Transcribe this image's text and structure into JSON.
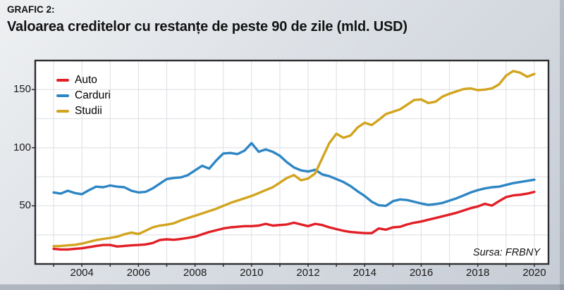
{
  "header": {
    "kicker": "GRAFIC 2:",
    "title": "Valoarea creditelor cu restanțe de peste 90 de zile (mld. USD)"
  },
  "source_note": "Sursa: FRBNY",
  "colors": {
    "auto_red": "#e11f26",
    "carduri_blue": "#2e86c4",
    "studii_gold": "#d2a41e",
    "grid": "#dbdee2",
    "plot_border": "#2e2e30",
    "plot_background": "#ffffff",
    "text": "#121212"
  },
  "chart_data": {
    "type": "line",
    "title": "Valoarea creditelor cu restanțe de peste 90 de zile (mld. USD)",
    "xlabel": "",
    "ylabel": "",
    "x_start": 2003.0,
    "x_step": 0.25,
    "x_unit": "year (quarterly data)",
    "xlim": [
      2002.35,
      2020.5
    ],
    "ylim": [
      0,
      175
    ],
    "grid": {
      "x_every_years": 1,
      "y_every_units": 25
    },
    "x_tick_labels": [
      "2004",
      "2006",
      "2008",
      "2010",
      "2012",
      "2014",
      "2016",
      "2018",
      "2020"
    ],
    "x_tick_years": [
      2004,
      2006,
      2008,
      2010,
      2012,
      2014,
      2016,
      2018,
      2020
    ],
    "y_tick_labels": [
      "50",
      "100",
      "150"
    ],
    "y_tick_values": [
      50,
      100,
      150
    ],
    "legend_position": "top-left",
    "series": [
      {
        "name": "Auto",
        "color": "#e11f26",
        "values": [
          13,
          12.5,
          12.5,
          13,
          13.5,
          14.5,
          15.5,
          16.3,
          16.3,
          15,
          15.5,
          16,
          16.3,
          16.8,
          18,
          20.6,
          21.2,
          20.8,
          21.5,
          22.4,
          23.5,
          25.5,
          27.5,
          29,
          30.5,
          31.5,
          32,
          32.5,
          32.5,
          33,
          34.5,
          33,
          33.5,
          34,
          35.5,
          34,
          32.5,
          34.5,
          33.5,
          31.5,
          30,
          28.5,
          27.5,
          27,
          26.5,
          26.5,
          30.5,
          29.5,
          31.5,
          32,
          34,
          35.5,
          36.5,
          38,
          39.5,
          41,
          42.5,
          44,
          46,
          48,
          49.5,
          51.8,
          50.2,
          54,
          57.5,
          59,
          59.5,
          60.5,
          62
        ]
      },
      {
        "name": "Carduri",
        "color": "#2e86c4",
        "values": [
          61.5,
          60.5,
          63,
          61,
          60,
          63.5,
          66.5,
          66,
          67.5,
          66.5,
          66,
          63,
          61.5,
          62,
          65,
          69,
          73,
          74,
          74.5,
          76.5,
          80.5,
          84.5,
          82,
          89,
          95,
          95.5,
          94.5,
          97.5,
          104,
          96.5,
          98.5,
          96.5,
          93,
          87.5,
          83,
          80.5,
          79.5,
          81,
          77,
          75.5,
          73,
          70.5,
          67,
          62.5,
          58.5,
          53.5,
          50.5,
          50,
          54,
          55.5,
          55,
          53.5,
          52,
          50.8,
          51.5,
          52.5,
          54.5,
          56.5,
          59,
          61.5,
          63.5,
          65,
          66,
          66.5,
          68,
          69.5,
          70.5,
          71.5,
          72.5
        ]
      },
      {
        "name": "Studii",
        "color": "#d2a41e",
        "values": [
          15.3,
          15.5,
          16,
          16.5,
          17.5,
          19,
          20.5,
          21.5,
          22.4,
          23.5,
          25.5,
          27,
          25.8,
          28.5,
          31.5,
          33,
          33.8,
          35,
          37.5,
          39.5,
          41.5,
          43.5,
          45.5,
          47.5,
          50,
          52.5,
          54.5,
          56.5,
          58.5,
          61,
          63.5,
          66,
          70,
          74,
          76.5,
          72,
          73.5,
          78,
          91,
          104,
          112,
          108.5,
          110.5,
          117.5,
          121.5,
          119.5,
          124,
          129,
          131,
          133,
          137,
          141,
          141.5,
          138.5,
          139.5,
          144,
          146.5,
          148.5,
          150.5,
          151,
          149.5,
          150,
          151,
          154.5,
          162,
          166,
          164.5,
          161,
          163.5
        ]
      }
    ]
  }
}
